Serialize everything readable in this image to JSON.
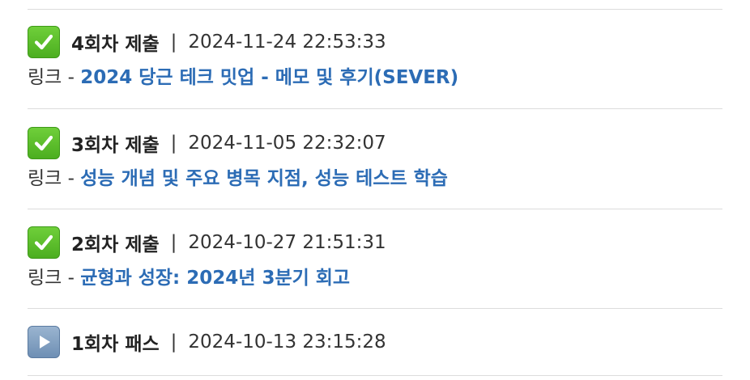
{
  "entries": [
    {
      "status": "check-mark-icon",
      "round": "4회차 제출",
      "separator": "|",
      "timestamp": "2024-11-24 22:53:33",
      "link_prefix": "링크 - ",
      "link_title": "2024 당근 테크 밋업 - 메모 및 후기(SEVER)"
    },
    {
      "status": "check-mark-icon",
      "round": "3회차 제출",
      "separator": "|",
      "timestamp": "2024-11-05 22:32:07",
      "link_prefix": "링크 - ",
      "link_title": "성능 개념 및 주요 병목 지점, 성능 테스트 학습"
    },
    {
      "status": "check-mark-icon",
      "round": "2회차 제출",
      "separator": "|",
      "timestamp": "2024-10-27 21:51:31",
      "link_prefix": "링크 - ",
      "link_title": "균형과 성장: 2024년 3분기 회고"
    },
    {
      "status": "play-icon",
      "round": "1회차 패스",
      "separator": "|",
      "timestamp": "2024-10-13 23:15:28"
    }
  ],
  "colors": {
    "link": "#2c6cb5",
    "check_badge": "#4cae20",
    "play_badge": "#6e8fb4",
    "divider": "#dcdcdc"
  }
}
